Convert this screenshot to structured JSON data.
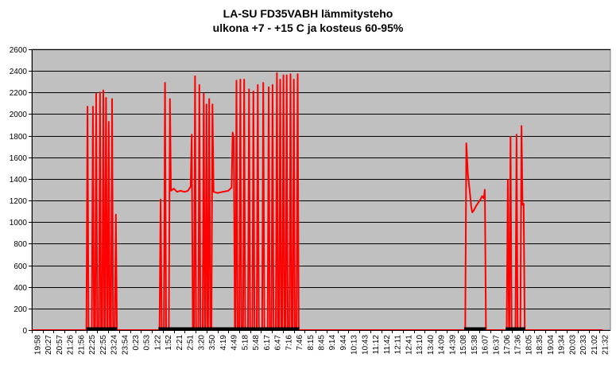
{
  "chart_data": {
    "type": "line",
    "title": "LA-SU FD35VABH lämmitysteho",
    "subtitle": "ulkona +7 - +15 C ja kosteus 60-95%",
    "xlabel": "",
    "ylabel": "",
    "ylim": [
      0,
      2600
    ],
    "yticks": [
      0,
      200,
      400,
      600,
      800,
      1000,
      1200,
      1400,
      1600,
      1800,
      2000,
      2200,
      2400,
      2600
    ],
    "grid": true,
    "legend": "none",
    "colors": {
      "plot_bg": "#c0c0c0",
      "line": "#ff0000",
      "gridline": "#000000",
      "baseline": "#000000"
    },
    "categories": [
      "19:58",
      "20:27",
      "20:57",
      "21:26",
      "21:56",
      "22:25",
      "22:55",
      "23:24",
      "23:54",
      "0:23",
      "0:53",
      "1:22",
      "1:52",
      "2:21",
      "2:51",
      "3:20",
      "3:50",
      "4:19",
      "4:49",
      "5:18",
      "5:48",
      "6:17",
      "6:47",
      "7:16",
      "7:46",
      "8:15",
      "8:45",
      "9:14",
      "9:44",
      "10:13",
      "10:43",
      "11:12",
      "11:42",
      "12:11",
      "12:41",
      "13:10",
      "13:40",
      "14:09",
      "14:39",
      "15:08",
      "15:38",
      "16:07",
      "16:37",
      "17:06",
      "17:36",
      "18:05",
      "18:35",
      "19:04",
      "19:34",
      "20:03",
      "20:33",
      "21:02",
      "21:32"
    ],
    "series": [
      {
        "name": "",
        "points": [
          [
            0,
            0
          ],
          [
            5.0,
            0
          ],
          [
            5.1,
            2070
          ],
          [
            5.2,
            0
          ],
          [
            5.5,
            0
          ],
          [
            5.6,
            2070
          ],
          [
            5.7,
            0
          ],
          [
            5.8,
            0
          ],
          [
            5.9,
            2190
          ],
          [
            6.0,
            0
          ],
          [
            6.15,
            0
          ],
          [
            6.25,
            2200
          ],
          [
            6.35,
            0
          ],
          [
            6.45,
            0
          ],
          [
            6.55,
            2220
          ],
          [
            6.65,
            0
          ],
          [
            6.7,
            0
          ],
          [
            6.8,
            2150
          ],
          [
            6.9,
            0
          ],
          [
            6.95,
            0
          ],
          [
            7.05,
            1930
          ],
          [
            7.15,
            0
          ],
          [
            7.25,
            0
          ],
          [
            7.35,
            2140
          ],
          [
            7.45,
            0
          ],
          [
            7.6,
            0
          ],
          [
            7.7,
            1070
          ],
          [
            7.8,
            0
          ],
          [
            11.7,
            0
          ],
          [
            11.8,
            1210
          ],
          [
            11.9,
            0
          ],
          [
            12.1,
            0
          ],
          [
            12.2,
            2290
          ],
          [
            12.3,
            0
          ],
          [
            12.55,
            0
          ],
          [
            12.65,
            2140
          ],
          [
            12.75,
            1290
          ],
          [
            13.0,
            1310
          ],
          [
            13.3,
            1280
          ],
          [
            13.6,
            1290
          ],
          [
            14.0,
            1280
          ],
          [
            14.3,
            1290
          ],
          [
            14.55,
            1330
          ],
          [
            14.65,
            1810
          ],
          [
            14.75,
            0
          ],
          [
            14.85,
            0
          ],
          [
            14.95,
            2350
          ],
          [
            15.05,
            0
          ],
          [
            15.25,
            0
          ],
          [
            15.35,
            2270
          ],
          [
            15.45,
            0
          ],
          [
            15.65,
            0
          ],
          [
            15.75,
            2190
          ],
          [
            15.85,
            0
          ],
          [
            15.9,
            0
          ],
          [
            16.0,
            2090
          ],
          [
            16.1,
            0
          ],
          [
            16.15,
            0
          ],
          [
            16.25,
            2140
          ],
          [
            16.35,
            0
          ],
          [
            16.45,
            0
          ],
          [
            16.55,
            2090
          ],
          [
            16.65,
            1280
          ],
          [
            17.0,
            1270
          ],
          [
            17.5,
            1280
          ],
          [
            18.0,
            1290
          ],
          [
            18.3,
            1320
          ],
          [
            18.4,
            1830
          ],
          [
            18.5,
            1780
          ],
          [
            18.6,
            0
          ],
          [
            18.65,
            0
          ],
          [
            18.75,
            2310
          ],
          [
            18.85,
            0
          ],
          [
            19.0,
            0
          ],
          [
            19.1,
            2320
          ],
          [
            19.2,
            0
          ],
          [
            19.35,
            0
          ],
          [
            19.45,
            2320
          ],
          [
            19.55,
            0
          ],
          [
            19.8,
            0
          ],
          [
            19.9,
            2230
          ],
          [
            20.0,
            0
          ],
          [
            20.2,
            0
          ],
          [
            20.3,
            2210
          ],
          [
            20.4,
            0
          ],
          [
            20.6,
            0
          ],
          [
            20.7,
            2270
          ],
          [
            20.8,
            0
          ],
          [
            21.1,
            0
          ],
          [
            21.2,
            2290
          ],
          [
            21.3,
            0
          ],
          [
            21.6,
            0
          ],
          [
            21.7,
            2250
          ],
          [
            21.8,
            0
          ],
          [
            21.95,
            0
          ],
          [
            22.05,
            2270
          ],
          [
            22.15,
            0
          ],
          [
            22.35,
            0
          ],
          [
            22.45,
            2380
          ],
          [
            22.55,
            0
          ],
          [
            22.65,
            0
          ],
          [
            22.75,
            2320
          ],
          [
            22.85,
            0
          ],
          [
            22.95,
            0
          ],
          [
            23.05,
            2360
          ],
          [
            23.15,
            0
          ],
          [
            23.25,
            0
          ],
          [
            23.35,
            2360
          ],
          [
            23.45,
            0
          ],
          [
            23.6,
            0
          ],
          [
            23.7,
            2370
          ],
          [
            23.8,
            0
          ],
          [
            23.9,
            0
          ],
          [
            24.0,
            2320
          ],
          [
            24.1,
            0
          ],
          [
            24.25,
            0
          ],
          [
            24.35,
            2370
          ],
          [
            24.45,
            0
          ],
          [
            39.7,
            0
          ],
          [
            39.8,
            1730
          ],
          [
            39.95,
            1440
          ],
          [
            40.1,
            1300
          ],
          [
            40.25,
            1140
          ],
          [
            40.35,
            1090
          ],
          [
            40.5,
            1110
          ],
          [
            40.7,
            1150
          ],
          [
            40.9,
            1180
          ],
          [
            41.1,
            1210
          ],
          [
            41.25,
            1240
          ],
          [
            41.4,
            1220
          ],
          [
            41.5,
            1300
          ],
          [
            41.6,
            0
          ],
          [
            43.5,
            0
          ],
          [
            43.6,
            1390
          ],
          [
            43.7,
            0
          ],
          [
            43.75,
            0
          ],
          [
            43.85,
            1790
          ],
          [
            43.95,
            0
          ],
          [
            44.3,
            0
          ],
          [
            44.4,
            1810
          ],
          [
            44.5,
            0
          ],
          [
            44.75,
            0
          ],
          [
            44.85,
            1890
          ],
          [
            44.95,
            1160
          ],
          [
            45.05,
            1170
          ],
          [
            45.15,
            0
          ],
          [
            52.3,
            0
          ]
        ]
      }
    ],
    "bold_baseline_segments": [
      [
        5.0,
        7.8
      ],
      [
        11.6,
        24.5
      ],
      [
        39.6,
        41.6
      ],
      [
        43.4,
        45.2
      ]
    ]
  }
}
